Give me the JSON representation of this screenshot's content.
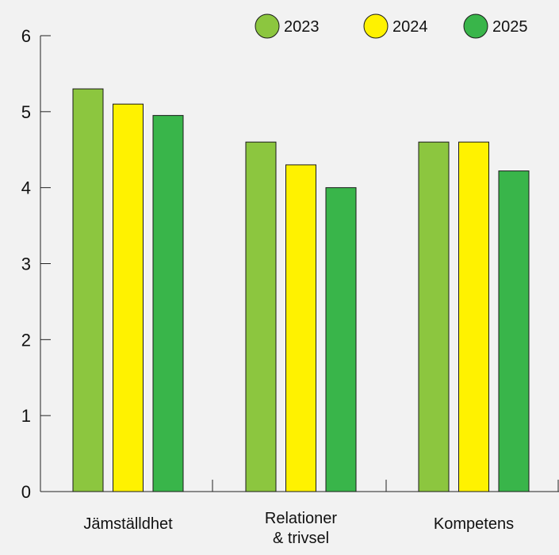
{
  "chart_data": {
    "type": "bar",
    "categories": [
      [
        "Jämställdhet"
      ],
      [
        "Relationer",
        "& trivsel"
      ],
      [
        "Kompetens"
      ]
    ],
    "series": [
      {
        "name": "2023",
        "color": "#8cc63f",
        "values": [
          5.3,
          4.6,
          4.6
        ]
      },
      {
        "name": "2024",
        "color": "#fff200",
        "values": [
          5.1,
          4.3,
          4.6
        ]
      },
      {
        "name": "2025",
        "color": "#39b54a",
        "values": [
          4.95,
          4.0,
          4.22
        ]
      }
    ],
    "yticks": [
      "0",
      "1",
      "2",
      "3",
      "4",
      "5",
      "6"
    ],
    "ylim": [
      0,
      6
    ],
    "grid": false,
    "legend_position": "top-right",
    "title": "",
    "xlabel": "",
    "ylabel": ""
  }
}
